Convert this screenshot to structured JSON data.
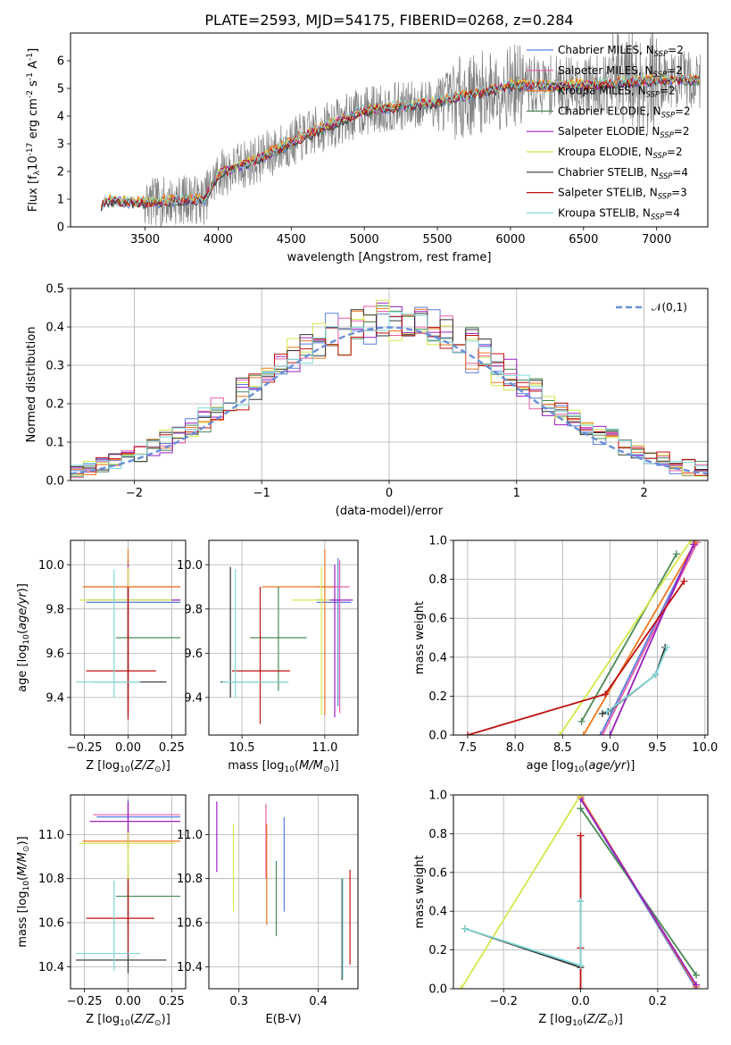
{
  "figure": {
    "title": "PLATE=2593, MJD=54175, FIBERID=0268, z=0.284"
  },
  "series_styles": [
    {
      "name": "Chabrier MILES",
      "legend": "Chabrier MILES, N$_{SSP}$=2",
      "color": "#5a7fe0"
    },
    {
      "name": "Salpeter MILES",
      "legend": "Salpeter MILES, N$_{SSP}$=2",
      "color": "#ea5fa8"
    },
    {
      "name": "Kroupa MILES",
      "legend": "Kroupa MILES, N$_{SSP}$=2",
      "color": "#f07820"
    },
    {
      "name": "Chabrier ELODIE",
      "legend": "Chabrier ELODIE, N$_{SSP}$=2",
      "color": "#4a8a55"
    },
    {
      "name": "Salpeter ELODIE",
      "legend": "Salpeter ELODIE, N$_{SSP}$=2",
      "color": "#9b1fbf"
    },
    {
      "name": "Kroupa ELODIE",
      "legend": "Kroupa ELODIE, N$_{SSP}$=2",
      "color": "#d4e84a"
    },
    {
      "name": "Chabrier STELIB",
      "legend": "Chabrier STELIB, N$_{SSP}$=4",
      "color": "#333333"
    },
    {
      "name": "Salpeter STELIB",
      "legend": "Salpeter STELIB, N$_{SSP}$=3",
      "color": "#c01010"
    },
    {
      "name": "Kroupa STELIB",
      "legend": "Kroupa STELIB, N$_{SSP}$=4",
      "color": "#80d8d8"
    }
  ],
  "chart_data": [
    {
      "type": "line",
      "id": "spectrum",
      "xlabel": "wavelength [Angstrom, rest frame]",
      "ylabel": "Flux [f$_\\lambda$10$^{-17}$ erg cm$^{-2}$ s$^{-1}$ A$^{-1}$]",
      "xlim": [
        2990,
        7350
      ],
      "ylim": [
        0,
        7
      ],
      "xticks": [
        3500,
        4000,
        4500,
        5000,
        5500,
        6000,
        6500,
        7000
      ],
      "yticks": [
        0,
        1,
        2,
        3,
        4,
        5,
        6
      ],
      "legend_position": "upper right",
      "data_color": "#808080",
      "x_start": 3200,
      "x_end": 7300,
      "continuum": [
        {
          "x": 3200,
          "y": 0.7
        },
        {
          "x": 3230,
          "y": 0.95
        },
        {
          "x": 3500,
          "y": 0.85
        },
        {
          "x": 3800,
          "y": 1.0
        },
        {
          "x": 3900,
          "y": 0.95
        },
        {
          "x": 4000,
          "y": 1.9
        },
        {
          "x": 4300,
          "y": 2.5
        },
        {
          "x": 4600,
          "y": 3.3
        },
        {
          "x": 5000,
          "y": 4.2
        },
        {
          "x": 5500,
          "y": 4.5
        },
        {
          "x": 6000,
          "y": 5.1
        },
        {
          "x": 6500,
          "y": 5.1
        },
        {
          "x": 7000,
          "y": 5.3
        },
        {
          "x": 7300,
          "y": 5.3
        }
      ]
    },
    {
      "type": "histogram",
      "id": "residuals",
      "xlabel": "(data-model)/error",
      "ylabel": "Normed distribution",
      "xlim": [
        -2.5,
        2.5
      ],
      "ylim": [
        0,
        0.5
      ],
      "xticks": [
        -2,
        -1,
        0,
        1,
        2
      ],
      "yticks": [
        0.0,
        0.1,
        0.2,
        0.3,
        0.4,
        0.5
      ],
      "bin_width": 0.1,
      "bin_start": -2.5,
      "reference_curve": {
        "label": "$\\mathcal{N}(0,1)$",
        "mean": 0,
        "sigma": 1,
        "color": "#6a8fd8",
        "style": "dashed"
      },
      "legend_position": "upper right",
      "grid": true
    },
    {
      "type": "errorbar",
      "id": "age_vs_Z",
      "xlabel": "Z [log$_{10}$($Z/Z_\\odot$)]",
      "ylabel": "age  [log$_{10}$($age/yr$)]",
      "xlim": [
        -0.33,
        0.33
      ],
      "ylim": [
        9.23,
        10.11
      ],
      "xticks": [
        -0.25,
        0.0,
        0.25
      ],
      "yticks": [
        9.4,
        9.6,
        9.8,
        10.0
      ],
      "grid": true,
      "points": [
        {
          "s": 0,
          "x": 0.0,
          "y": 9.83,
          "xerr": [
            0.24,
            0.3
          ],
          "yerr": [
            0.47,
            0.2
          ]
        },
        {
          "s": 1,
          "x": 0.0,
          "y": 9.9,
          "xerr": [
            0.25,
            0.3
          ],
          "yerr": [
            0.57,
            0.12
          ]
        },
        {
          "s": 2,
          "x": 0.0,
          "y": 9.9,
          "xerr": [
            0.26,
            0.3
          ],
          "yerr": [
            0.58,
            0.17
          ]
        },
        {
          "s": 3,
          "x": 0.0,
          "y": 9.67,
          "xerr": [
            0.07,
            0.3
          ],
          "yerr": [
            0.24,
            0.23
          ]
        },
        {
          "s": 4,
          "x": 0.0,
          "y": 9.84,
          "xerr": [
            0.24,
            0.3
          ],
          "yerr": [
            0.53,
            0.16
          ]
        },
        {
          "s": 5,
          "x": 0.0,
          "y": 9.84,
          "xerr": [
            0.28,
            0.25
          ],
          "yerr": [
            0.52,
            0.15
          ]
        },
        {
          "s": 6,
          "x": 0.0,
          "y": 9.47,
          "xerr": [
            0.2,
            0.22
          ],
          "yerr": [
            0.09,
            0.43
          ]
        },
        {
          "s": 7,
          "x": 0.0,
          "y": 9.52,
          "xerr": [
            0.24,
            0.16
          ],
          "yerr": [
            0.22,
            0.38
          ]
        },
        {
          "s": 8,
          "x": -0.08,
          "y": 9.47,
          "xerr": [
            0.22,
            0.15
          ],
          "yerr": [
            0.07,
            0.51
          ]
        }
      ]
    },
    {
      "type": "errorbar",
      "id": "age_vs_mass",
      "xlabel": "mass [log$_{10}$($M/M_\\odot$)]",
      "ylabel": "",
      "xlim": [
        10.3,
        11.2
      ],
      "ylim": [
        9.23,
        10.11
      ],
      "xticks": [
        10.5,
        11.0
      ],
      "yticks": [
        9.4,
        9.6,
        9.8,
        10.0
      ],
      "grid": true,
      "points": [
        {
          "s": 0,
          "x": 11.08,
          "y": 9.83,
          "xerr": [
            0.13,
            0.08
          ],
          "yerr": [
            0.47,
            0.2
          ]
        },
        {
          "s": 1,
          "x": 11.09,
          "y": 9.9,
          "xerr": [
            0.14,
            0.06
          ],
          "yerr": [
            0.57,
            0.12
          ]
        },
        {
          "s": 2,
          "x": 11.0,
          "y": 9.9,
          "xerr": [
            0.38,
            0.06
          ],
          "yerr": [
            0.58,
            0.17
          ]
        },
        {
          "s": 3,
          "x": 10.72,
          "y": 9.67,
          "xerr": [
            0.17,
            0.17
          ],
          "yerr": [
            0.24,
            0.23
          ]
        },
        {
          "s": 4,
          "x": 11.06,
          "y": 9.84,
          "xerr": [
            0.12,
            0.11
          ],
          "yerr": [
            0.53,
            0.16
          ]
        },
        {
          "s": 5,
          "x": 10.98,
          "y": 9.84,
          "xerr": [
            0.18,
            0.05
          ],
          "yerr": [
            0.52,
            0.15
          ]
        },
        {
          "s": 6,
          "x": 10.43,
          "y": 9.47,
          "xerr": [
            0.06,
            0.35
          ],
          "yerr": [
            0.07,
            0.52
          ]
        },
        {
          "s": 7,
          "x": 10.61,
          "y": 9.52,
          "xerr": [
            0.17,
            0.18
          ],
          "yerr": [
            0.24,
            0.38
          ]
        },
        {
          "s": 8,
          "x": 10.46,
          "y": 9.47,
          "xerr": [
            0.08,
            0.32
          ],
          "yerr": [
            0.07,
            0.51
          ]
        }
      ]
    },
    {
      "type": "line",
      "id": "massweight_vs_age",
      "xlabel": "age  [log$_{10}$($age/yr$)]",
      "ylabel": "mass weight",
      "xlim": [
        7.35,
        10.03
      ],
      "ylim": [
        0,
        1
      ],
      "xticks": [
        7.5,
        8.0,
        8.5,
        9.0,
        9.5,
        10.0
      ],
      "yticks": [
        0.0,
        0.2,
        0.4,
        0.6,
        0.8,
        1.0
      ],
      "grid": true,
      "series": [
        {
          "s": 0,
          "points": [
            [
              8.9,
              0.0
            ],
            [
              9.89,
              0.98
            ]
          ]
        },
        {
          "s": 1,
          "points": [
            [
              8.92,
              0.0
            ],
            [
              9.92,
              0.99
            ]
          ]
        },
        {
          "s": 2,
          "points": [
            [
              8.72,
              0.0
            ],
            [
              9.9,
              0.99
            ]
          ]
        },
        {
          "s": 3,
          "points": [
            [
              8.7,
              0.07
            ],
            [
              9.7,
              0.93
            ]
          ]
        },
        {
          "s": 4,
          "points": [
            [
              9.0,
              0.0
            ],
            [
              9.88,
              0.98
            ]
          ]
        },
        {
          "s": 5,
          "points": [
            [
              8.47,
              0.0
            ],
            [
              9.85,
              1.0
            ]
          ]
        },
        {
          "s": 6,
          "points": [
            [
              8.92,
              0.11
            ],
            [
              8.98,
              0.12
            ],
            [
              9.48,
              0.31
            ],
            [
              9.58,
              0.45
            ]
          ]
        },
        {
          "s": 7,
          "points": [
            [
              7.5,
              0.0
            ],
            [
              8.95,
              0.21
            ],
            [
              9.78,
              0.79
            ]
          ]
        },
        {
          "s": 8,
          "points": [
            [
              8.97,
              0.12
            ],
            [
              9.48,
              0.31
            ],
            [
              9.6,
              0.45
            ]
          ]
        }
      ]
    },
    {
      "type": "errorbar",
      "id": "mass_vs_Z",
      "xlabel": "Z [log$_{10}$($Z/Z_\\odot$)]",
      "ylabel": "mass [log$_{10}$($M/M_\\odot$)]",
      "xlim": [
        -0.33,
        0.33
      ],
      "ylim": [
        10.3,
        11.18
      ],
      "xticks": [
        -0.25,
        0.0,
        0.25
      ],
      "yticks": [
        10.4,
        10.6,
        10.8,
        11.0
      ],
      "grid": true,
      "points": [
        {
          "s": 0,
          "x": 0.0,
          "y": 11.08,
          "xerr": [
            0.18,
            0.3
          ],
          "yerr": [
            0.13,
            0.08
          ]
        },
        {
          "s": 1,
          "x": 0.0,
          "y": 11.09,
          "xerr": [
            0.2,
            0.3
          ],
          "yerr": [
            0.14,
            0.06
          ]
        },
        {
          "s": 2,
          "x": 0.0,
          "y": 10.97,
          "xerr": [
            0.26,
            0.3
          ],
          "yerr": [
            0.38,
            0.06
          ]
        },
        {
          "s": 3,
          "x": 0.0,
          "y": 10.72,
          "xerr": [
            0.07,
            0.3
          ],
          "yerr": [
            0.17,
            0.15
          ]
        },
        {
          "s": 4,
          "x": 0.0,
          "y": 11.06,
          "xerr": [
            0.22,
            0.3
          ],
          "yerr": [
            0.12,
            0.09
          ]
        },
        {
          "s": 5,
          "x": 0.0,
          "y": 10.96,
          "xerr": [
            0.28,
            0.27
          ],
          "yerr": [
            0.18,
            0.05
          ]
        },
        {
          "s": 6,
          "x": 0.0,
          "y": 10.43,
          "xerr": [
            0.3,
            0.22
          ],
          "yerr": [
            0.06,
            0.35
          ]
        },
        {
          "s": 7,
          "x": 0.0,
          "y": 10.62,
          "xerr": [
            0.24,
            0.15
          ],
          "yerr": [
            0.17,
            0.18
          ]
        },
        {
          "s": 8,
          "x": -0.08,
          "y": 10.46,
          "xerr": [
            0.22,
            0.15
          ],
          "yerr": [
            0.08,
            0.33
          ]
        }
      ]
    },
    {
      "type": "errorbar",
      "id": "mass_vs_ebv",
      "xlabel": "E(B-V)",
      "ylabel": "",
      "xlim": [
        0.262,
        0.45
      ],
      "ylim": [
        10.3,
        11.18
      ],
      "xticks": [
        0.3,
        0.4
      ],
      "yticks": [
        10.4,
        10.6,
        10.8,
        11.0
      ],
      "grid": true,
      "points": [
        {
          "s": 0,
          "x": 0.357,
          "y": 10.96,
          "yerr": [
            0.31,
            0.12
          ]
        },
        {
          "s": 1,
          "x": 0.334,
          "y": 11.0,
          "yerr": [
            0.2,
            0.14
          ]
        },
        {
          "s": 2,
          "x": 0.335,
          "y": 10.97,
          "yerr": [
            0.38,
            0.08
          ]
        },
        {
          "s": 3,
          "x": 0.347,
          "y": 10.7,
          "yerr": [
            0.16,
            0.18
          ]
        },
        {
          "s": 4,
          "x": 0.272,
          "y": 10.99,
          "yerr": [
            0.16,
            0.16
          ]
        },
        {
          "s": 5,
          "x": 0.293,
          "y": 10.85,
          "yerr": [
            0.2,
            0.2
          ]
        },
        {
          "s": 6,
          "x": 0.43,
          "y": 10.55,
          "yerr": [
            0.21,
            0.25
          ]
        },
        {
          "s": 7,
          "x": 0.44,
          "y": 10.6,
          "yerr": [
            0.19,
            0.24
          ]
        },
        {
          "s": 8,
          "x": 0.431,
          "y": 10.5,
          "yerr": [
            0.15,
            0.3
          ]
        }
      ]
    },
    {
      "type": "line",
      "id": "massweight_vs_Z",
      "xlabel": "Z [log$_{10}$($Z/Z_\\odot$)]",
      "ylabel": "mass weight",
      "xlim": [
        -0.33,
        0.33
      ],
      "ylim": [
        0,
        1
      ],
      "xticks": [
        -0.2,
        0.0,
        0.2
      ],
      "yticks": [
        0.0,
        0.2,
        0.4,
        0.6,
        0.8,
        1.0
      ],
      "grid": true,
      "series": [
        {
          "s": 0,
          "points": [
            [
              0.0,
              0.98
            ],
            [
              0.3,
              0.0
            ]
          ]
        },
        {
          "s": 1,
          "points": [
            [
              0.0,
              0.99
            ],
            [
              0.3,
              0.01
            ]
          ]
        },
        {
          "s": 2,
          "points": [
            [
              0.0,
              0.99
            ],
            [
              0.3,
              0.01
            ]
          ]
        },
        {
          "s": 3,
          "points": [
            [
              0.0,
              0.93
            ],
            [
              0.3,
              0.07
            ]
          ]
        },
        {
          "s": 4,
          "points": [
            [
              0.0,
              0.98
            ],
            [
              0.3,
              0.02
            ]
          ]
        },
        {
          "s": 5,
          "points": [
            [
              -0.31,
              0.0
            ],
            [
              0.0,
              1.0
            ]
          ]
        },
        {
          "s": 6,
          "points": [
            [
              -0.3,
              0.31
            ],
            [
              0.0,
              0.11
            ],
            [
              0.0,
              0.45
            ]
          ]
        },
        {
          "s": 7,
          "points": [
            [
              0.0,
              0.0
            ],
            [
              0.0,
              0.21
            ],
            [
              0.0,
              0.79
            ]
          ]
        },
        {
          "s": 8,
          "points": [
            [
              -0.3,
              0.31
            ],
            [
              0.0,
              0.12
            ],
            [
              0.0,
              0.45
            ]
          ]
        }
      ]
    }
  ]
}
